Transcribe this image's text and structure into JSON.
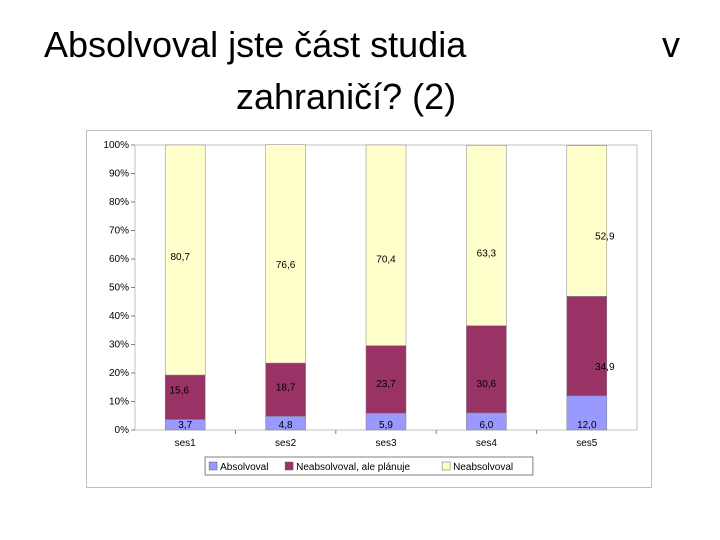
{
  "slide": {
    "title_line1": "Absolvoval jste část studia",
    "title_line1_end": "v",
    "title_line2": "zahraničí? (2)"
  },
  "chart_data": {
    "type": "bar",
    "stacked": true,
    "percent_axis": true,
    "categories": [
      "ses1",
      "ses2",
      "ses3",
      "ses4",
      "ses5"
    ],
    "series": [
      {
        "name": "Absolvoval",
        "values": [
          3.7,
          4.8,
          5.9,
          6.0,
          12.0
        ],
        "labels": [
          "3,7",
          "4,8",
          "5,9",
          "6,0",
          "12,0"
        ],
        "color": "#9999ff"
      },
      {
        "name": "Neabsolvoval, ale plánuje",
        "values": [
          15.6,
          18.7,
          23.7,
          30.6,
          34.9
        ],
        "labels": [
          "15,6",
          "18,7",
          "23,7",
          "30,6",
          "34,9"
        ],
        "color": "#993366"
      },
      {
        "name": "Neabsolvoval",
        "values": [
          80.7,
          76.6,
          70.4,
          63.3,
          52.9
        ],
        "labels": [
          "80,7",
          "76,6",
          "70,4",
          "63,3",
          "52,9"
        ],
        "color": "#ffffcc"
      }
    ],
    "y_ticks": [
      "0%",
      "10%",
      "20%",
      "30%",
      "40%",
      "50%",
      "60%",
      "70%",
      "80%",
      "90%",
      "100%"
    ],
    "ylim": [
      0,
      100
    ],
    "grid": false,
    "legend_position": "bottom"
  }
}
